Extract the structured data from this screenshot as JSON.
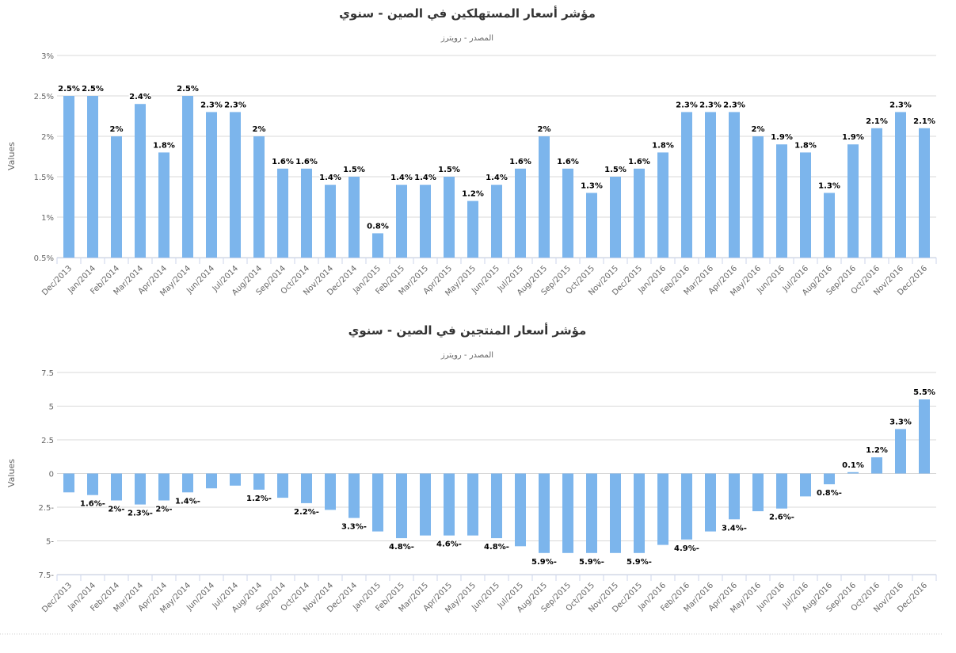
{
  "chart_data": [
    {
      "type": "bar",
      "title": "مؤشر أسعار المستهلكين في الصين - سنوي",
      "subtitle": "المصدر - رويترز",
      "ylabel": "Values",
      "ylim": [
        0.5,
        3
      ],
      "yticks": [
        "0.5%",
        "1%",
        "1.5%",
        "2%",
        "2.5%",
        "3%"
      ],
      "ytick_values": [
        0.5,
        1,
        1.5,
        2,
        2.5,
        3
      ],
      "grid": true,
      "color": "#7cb5ec",
      "categories": [
        "Dec/2013",
        "Jan/2014",
        "Feb/2014",
        "Mar/2014",
        "Apr/2014",
        "May/2014",
        "Jun/2014",
        "Jul/2014",
        "Aug/2014",
        "Sep/2014",
        "Oct/2014",
        "Nov/2014",
        "Dec/2014",
        "Jan/2015",
        "Feb/2015",
        "Mar/2015",
        "Apr/2015",
        "May/2015",
        "Jun/2015",
        "Jul/2015",
        "Aug/2015",
        "Sep/2015",
        "Oct/2015",
        "Nov/2015",
        "Dec/2015",
        "Jan/2016",
        "Feb/2016",
        "Mar/2016",
        "Apr/2016",
        "May/2016",
        "Jun/2016",
        "Jul/2016",
        "Aug/2016",
        "Sep/2016",
        "Oct/2016",
        "Nov/2016",
        "Dec/2016"
      ],
      "values": [
        2.5,
        2.5,
        2,
        2.4,
        1.8,
        2.5,
        2.3,
        2.3,
        2,
        1.6,
        1.6,
        1.4,
        1.5,
        0.8,
        1.4,
        1.4,
        1.5,
        1.2,
        1.4,
        1.6,
        2,
        1.6,
        1.3,
        1.5,
        1.6,
        1.8,
        2.3,
        2.3,
        2.3,
        2,
        1.9,
        1.8,
        1.3,
        1.9,
        2.1,
        2.3,
        2.1
      ],
      "labels": [
        "2.5%",
        "2.5%",
        "2%",
        "2.4%",
        "1.8%",
        "2.5%",
        "2.3%",
        "2.3%",
        "2%",
        "1.6%",
        "1.6%",
        "1.4%",
        "1.5%",
        "0.8%",
        "1.4%",
        "1.4%",
        "1.5%",
        "1.2%",
        "1.4%",
        "1.6%",
        "2%",
        "1.6%",
        "1.3%",
        "1.5%",
        "1.6%",
        "1.8%",
        "2.3%",
        "2.3%",
        "2.3%",
        "2%",
        "1.9%",
        "1.8%",
        "1.3%",
        "1.9%",
        "2.1%",
        "2.3%",
        "2.1%"
      ]
    },
    {
      "type": "bar",
      "title": "مؤشر أسعار المنتجين في الصين - سنوي",
      "subtitle": "المصدر - رويترز",
      "ylabel": "Values",
      "ylim": [
        -7.5,
        7.5
      ],
      "yticks": [
        "7.5-",
        "5-",
        "2.5-",
        "0",
        "2.5",
        "5",
        "7.5"
      ],
      "ytick_values": [
        -7.5,
        -5,
        -2.5,
        0,
        2.5,
        5,
        7.5
      ],
      "grid": true,
      "color": "#7cb5ec",
      "categories": [
        "Dec/2013",
        "Jan/2014",
        "Feb/2014",
        "Mar/2014",
        "Apr/2014",
        "May/2014",
        "Jun/2014",
        "Jul/2014",
        "Aug/2014",
        "Sep/2014",
        "Oct/2014",
        "Nov/2014",
        "Dec/2014",
        "Jan/2015",
        "Feb/2015",
        "Mar/2015",
        "Apr/2015",
        "May/2015",
        "Jun/2015",
        "Jul/2015",
        "Aug/2015",
        "Sep/2015",
        "Oct/2015",
        "Nov/2015",
        "Dec/2015",
        "Jan/2016",
        "Feb/2016",
        "Mar/2016",
        "Apr/2016",
        "May/2016",
        "Jun/2016",
        "Jul/2016",
        "Aug/2016",
        "Sep/2016",
        "Oct/2016",
        "Nov/2016",
        "Dec/2016"
      ],
      "values": [
        -1.4,
        -1.6,
        -2,
        -2.3,
        -2,
        -1.4,
        -1.1,
        -0.9,
        -1.2,
        -1.8,
        -2.2,
        -2.7,
        -3.3,
        -4.3,
        -4.8,
        -4.6,
        -4.6,
        -4.6,
        -4.8,
        -5.4,
        -5.9,
        -5.9,
        -5.9,
        -5.9,
        -5.9,
        -5.3,
        -4.9,
        -4.3,
        -3.4,
        -2.8,
        -2.6,
        -1.7,
        -0.8,
        0.1,
        1.2,
        3.3,
        5.5
      ],
      "labels": [
        null,
        "1.6%-",
        "2%-",
        "2.3%-",
        "2%-",
        "1.4%-",
        null,
        null,
        "1.2%-",
        null,
        "2.2%-",
        null,
        "3.3%-",
        null,
        "4.8%-",
        null,
        "4.6%-",
        null,
        "4.8%-",
        null,
        "5.9%-",
        null,
        "5.9%-",
        null,
        "5.9%-",
        null,
        "4.9%-",
        null,
        "3.4%-",
        null,
        "2.6%-",
        null,
        "0.8%-",
        "0.1%",
        "1.2%",
        "3.3%",
        "5.5%"
      ]
    }
  ]
}
